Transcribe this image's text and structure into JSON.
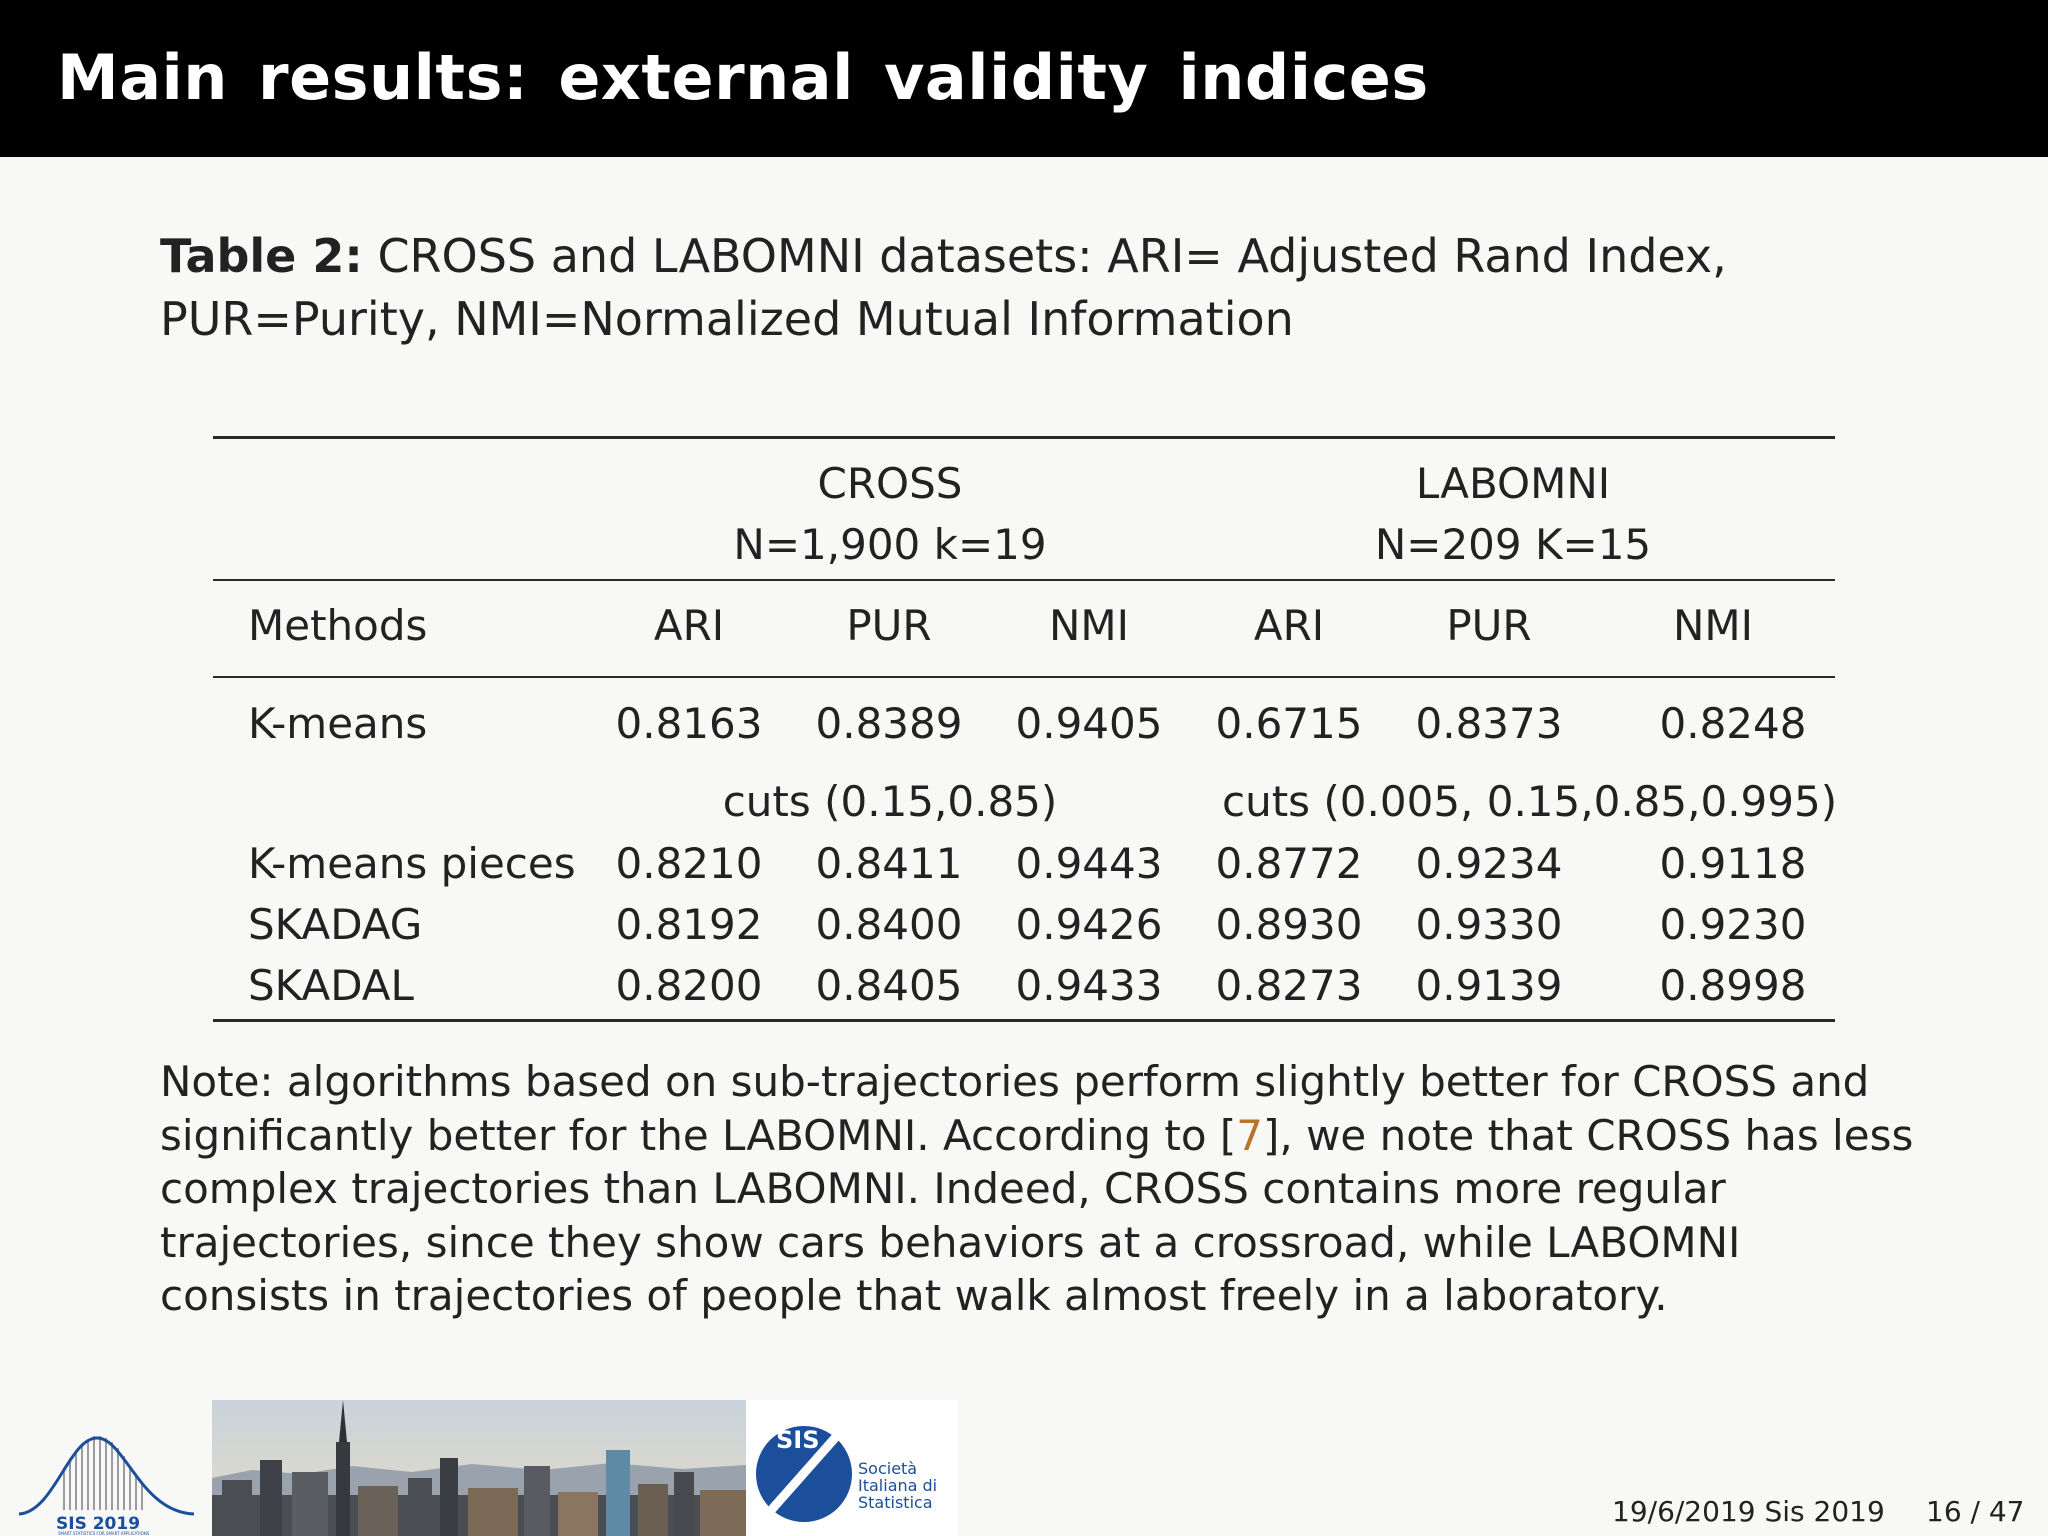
{
  "slide": {
    "title": "Main results: external validity indices"
  },
  "caption": {
    "label": "Table 2:",
    "text_line1": "CROSS and LABOMNI datasets: ARI= Adjusted Rand Index,",
    "text_line2": "PUR=Purity, NMI=Normalized Mutual Information"
  },
  "table": {
    "groups": [
      {
        "name": "CROSS",
        "sub": "N=1,900 k=19"
      },
      {
        "name": "LABOMNI",
        "sub": "N=209 K=15"
      }
    ],
    "columns": [
      "Methods",
      "ARI",
      "PUR",
      "NMI",
      "ARI",
      "PUR",
      "NMI"
    ],
    "kmeans_row": [
      "K-means",
      "0.8163",
      "0.8389",
      "0.9405",
      "0.6715",
      "0.8373",
      "0.8248"
    ],
    "cuts": [
      "cuts (0.15,0.85)",
      "cuts (0.005, 0.15,0.85,0.995)"
    ],
    "rows": [
      [
        "K-means pieces",
        "0.8210",
        "0.8411",
        "0.9443",
        "0.8772",
        "0.9234",
        "0.9118"
      ],
      [
        "SKADAG",
        "0.8192",
        "0.8400",
        "0.9426",
        "0.8930",
        "0.9330",
        "0.9230"
      ],
      [
        "SKADAL",
        "0.8200",
        "0.8405",
        "0.9433",
        "0.8273",
        "0.9139",
        "0.8998"
      ]
    ]
  },
  "note": {
    "part1": "Note: algorithms based on sub-trajectories perform slightly better for CROSS and significantly better for the LABOMNI. According to [",
    "cite": "7",
    "part2": "], we note that CROSS has less complex trajectories than LABOMNI. Indeed, CROSS contains more regular trajectories, since they show cars behaviors at a crossroad, while LABOMNI consists in trajectories of people that walk almost freely in a laboratory."
  },
  "footer": {
    "date_event": "19/6/2019 Sis 2019",
    "page": "16 / 47",
    "logo_sis2019_text": "SIS 2019",
    "logo_sis2019_tagline": "SMART STATISTICS FOR SMART APPLICATIONS",
    "logo_sis_abbr": "SIS",
    "logo_sis_line1": "Società",
    "logo_sis_line2": "Italiana di",
    "logo_sis_line3": "Statistica"
  },
  "colors": {
    "title_bar": "#000000",
    "title_text": "#ffffff",
    "citation": "#b5752a",
    "sis_blue": "#1b4f9c"
  }
}
